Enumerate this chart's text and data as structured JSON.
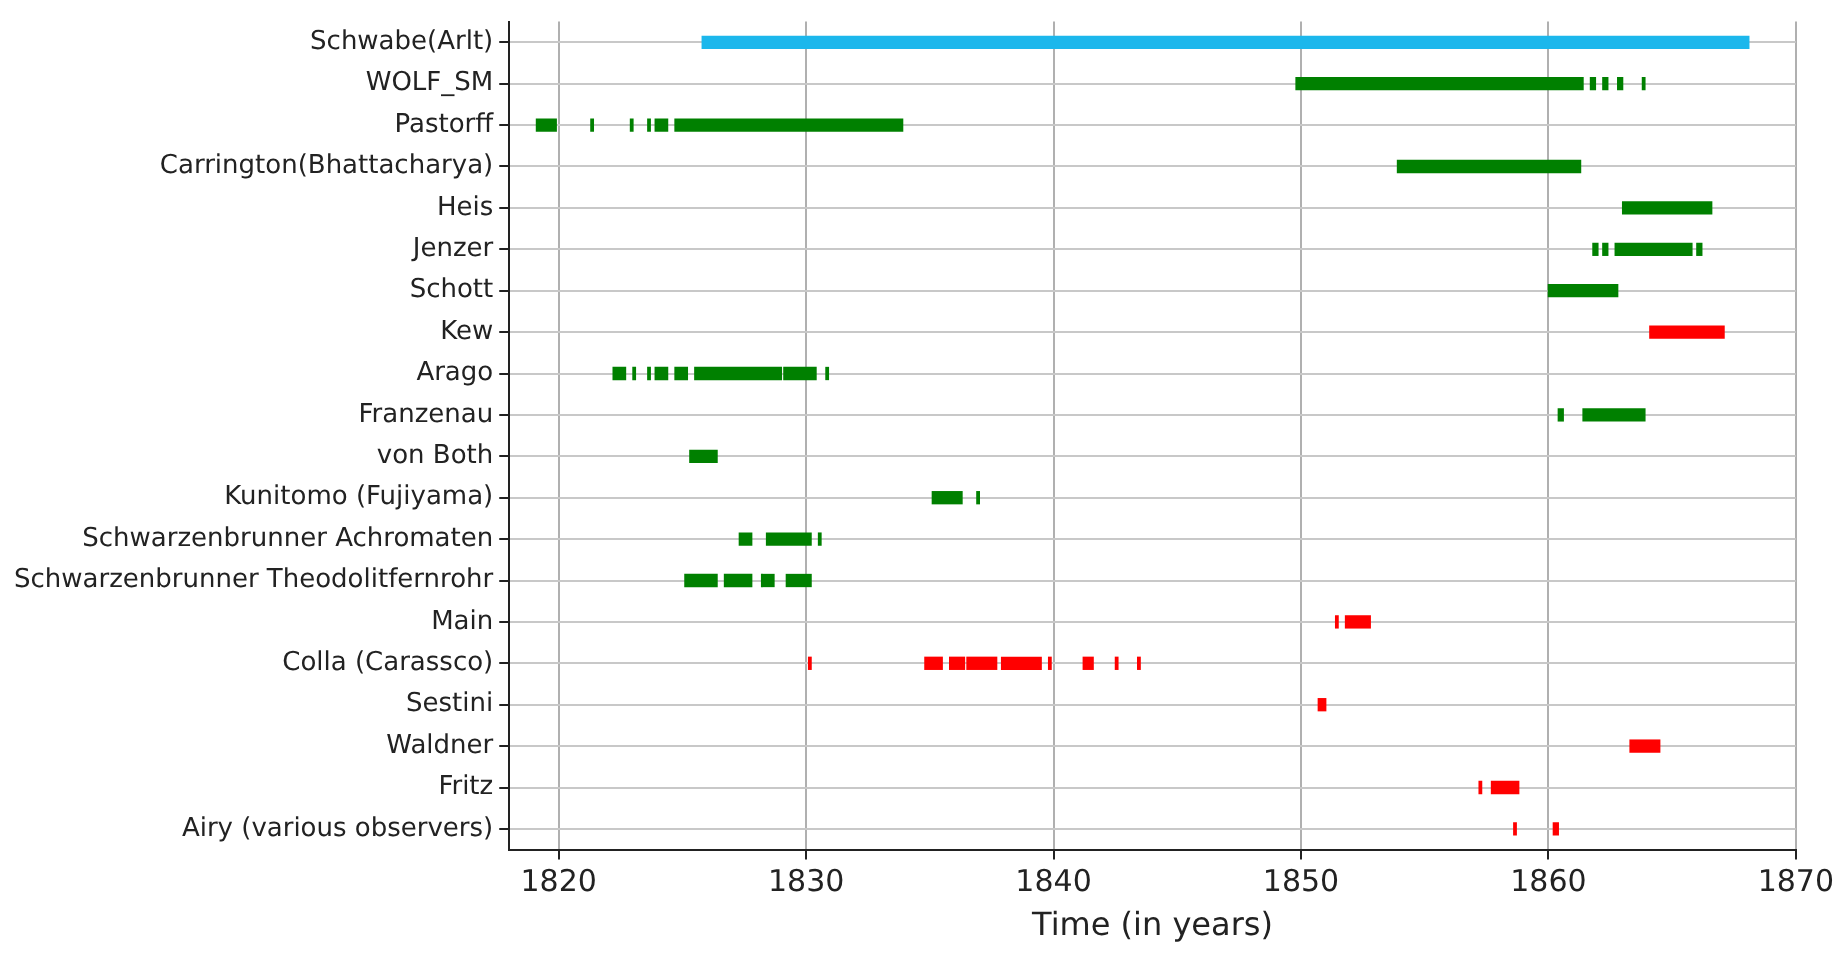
{
  "chart_data": {
    "type": "bar",
    "orientation": "horizontal",
    "xlabel": "Time (in years)",
    "categories": [
      "Schwabe(Arlt)",
      "WOLF_SM",
      "Pastorff",
      "Carrington(Bhattacharya)",
      "Heis",
      "Jenzer",
      "Schott",
      "Kew",
      "Arago",
      "Franzenau",
      "von Both",
      "Kunitomo (Fujiyama)",
      "Schwarzenbrunner Achromaten",
      "Schwarzenbrunner Theodolitfernrohr",
      "Main",
      "Colla (Carassco)",
      "Sestini",
      "Waldner",
      "Fritz",
      "Airy (various observers)"
    ],
    "series": [
      {
        "base": [
          1825.8,
          1849.8,
          1819.1,
          1853.9,
          1863.0,
          1861.8,
          1860.0,
          1864.1,
          1822.2,
          1860.4,
          1825.3,
          1835.1,
          1827.3,
          1825.1,
          1851.4,
          1830.1,
          1850.7,
          1863.3,
          1857.2,
          1858.6
        ],
        "values": [
          42.3,
          11.6,
          0.8,
          7.4,
          3.6,
          0.2,
          2.8,
          3.0,
          0.5,
          0.2,
          1.1,
          1.2,
          0.5,
          1.3,
          0.1,
          0.1,
          0.3,
          1.2,
          0.1,
          0.1
        ],
        "colors": [
          "#1cb7ec",
          "#008000",
          "#008000",
          "#008000",
          "#008000",
          "#008000",
          "#008000",
          "#ff0000",
          "#008000",
          "#008000",
          "#008000",
          "#008000",
          "#008000",
          "#008000",
          "#ff0000",
          "#ff0000",
          "#ff0000",
          "#ff0000",
          "#ff0000",
          "#ff0000"
        ]
      },
      {
        "base": [
          null,
          1861.7,
          1821.3,
          null,
          null,
          1862.2,
          null,
          null,
          1823.0,
          1861.4,
          null,
          1836.9,
          1828.4,
          1826.7,
          1851.8,
          1834.8,
          null,
          null,
          1857.7,
          1860.2
        ],
        "values": [
          null,
          0.2,
          0.1,
          null,
          null,
          0.2,
          null,
          null,
          0.1,
          2.5,
          null,
          0.1,
          1.8,
          1.1,
          1.0,
          0.7,
          null,
          null,
          1.1,
          0.2
        ],
        "colors": [
          null,
          "#008000",
          "#008000",
          null,
          null,
          "#008000",
          null,
          null,
          "#008000",
          "#008000",
          null,
          "#008000",
          "#008000",
          "#008000",
          "#ff0000",
          "#ff0000",
          null,
          null,
          "#ff0000",
          "#ff0000"
        ]
      },
      {
        "base": [
          null,
          1862.2,
          1822.9,
          null,
          null,
          1862.7,
          null,
          null,
          1823.6,
          null,
          null,
          null,
          1830.5,
          1828.2,
          null,
          1835.8,
          null,
          null,
          null,
          null
        ],
        "values": [
          null,
          0.2,
          0.1,
          null,
          null,
          3.1,
          null,
          null,
          0.1,
          null,
          null,
          null,
          0.1,
          0.5,
          null,
          0.6,
          null,
          null,
          null,
          null
        ],
        "colors": [
          null,
          "#008000",
          "#008000",
          null,
          null,
          "#008000",
          null,
          null,
          "#008000",
          null,
          null,
          null,
          "#008000",
          "#008000",
          null,
          "#ff0000",
          null,
          null,
          null,
          null
        ]
      },
      {
        "base": [
          null,
          1862.8,
          1823.6,
          null,
          null,
          1866.0,
          null,
          null,
          1823.9,
          null,
          null,
          null,
          null,
          1829.2,
          null,
          1836.5,
          null,
          null,
          null,
          null
        ],
        "values": [
          null,
          0.2,
          0.1,
          null,
          null,
          0.2,
          null,
          null,
          0.5,
          null,
          null,
          null,
          null,
          1.0,
          null,
          1.2,
          null,
          null,
          null,
          null
        ],
        "colors": [
          null,
          "#008000",
          "#008000",
          null,
          null,
          "#008000",
          null,
          null,
          "#008000",
          null,
          null,
          null,
          null,
          "#008000",
          null,
          "#ff0000",
          null,
          null,
          null,
          null
        ]
      },
      {
        "base": [
          null,
          1863.8,
          1823.9,
          null,
          null,
          null,
          null,
          null,
          1824.7,
          null,
          null,
          null,
          null,
          null,
          null,
          1837.9,
          null,
          null,
          null,
          null
        ],
        "values": [
          null,
          0.1,
          0.5,
          null,
          null,
          null,
          null,
          null,
          0.5,
          null,
          null,
          null,
          null,
          null,
          null,
          1.6,
          null,
          null,
          null,
          null
        ],
        "colors": [
          null,
          "#008000",
          "#008000",
          null,
          null,
          null,
          null,
          null,
          "#008000",
          null,
          null,
          null,
          null,
          null,
          null,
          "#ff0000",
          null,
          null,
          null,
          null
        ]
      },
      {
        "base": [
          null,
          null,
          1824.7,
          null,
          null,
          null,
          null,
          null,
          1825.5,
          null,
          null,
          null,
          null,
          null,
          null,
          1839.8,
          null,
          null,
          null,
          null
        ],
        "values": [
          null,
          null,
          9.2,
          null,
          null,
          null,
          null,
          null,
          3.5,
          null,
          null,
          null,
          null,
          null,
          null,
          0.1,
          null,
          null,
          null,
          null
        ],
        "colors": [
          null,
          null,
          "#008000",
          null,
          null,
          null,
          null,
          null,
          "#008000",
          null,
          null,
          null,
          null,
          null,
          null,
          "#ff0000",
          null,
          null,
          null,
          null
        ]
      },
      {
        "base": [
          null,
          null,
          null,
          null,
          null,
          null,
          null,
          null,
          1829.1,
          null,
          null,
          null,
          null,
          null,
          null,
          1841.2,
          null,
          null,
          null,
          null
        ],
        "values": [
          null,
          null,
          null,
          null,
          null,
          null,
          null,
          null,
          1.3,
          null,
          null,
          null,
          null,
          null,
          null,
          0.4,
          null,
          null,
          null,
          null
        ],
        "colors": [
          null,
          null,
          null,
          null,
          null,
          null,
          null,
          null,
          "#008000",
          null,
          null,
          null,
          null,
          null,
          null,
          "#ff0000",
          null,
          null,
          null,
          null
        ]
      },
      {
        "base": [
          null,
          null,
          null,
          null,
          null,
          null,
          null,
          null,
          1830.8,
          null,
          null,
          null,
          null,
          null,
          null,
          1842.5,
          null,
          null,
          null,
          null
        ],
        "values": [
          null,
          null,
          null,
          null,
          null,
          null,
          null,
          null,
          0.1,
          null,
          null,
          null,
          null,
          null,
          null,
          0.1,
          null,
          null,
          null,
          null
        ],
        "colors": [
          null,
          null,
          null,
          null,
          null,
          null,
          null,
          null,
          "#008000",
          null,
          null,
          null,
          null,
          null,
          null,
          "#ff0000",
          null,
          null,
          null,
          null
        ]
      },
      {
        "base": [
          null,
          null,
          null,
          null,
          null,
          null,
          null,
          null,
          null,
          null,
          null,
          null,
          null,
          null,
          null,
          1843.4,
          null,
          null,
          null,
          null
        ],
        "values": [
          null,
          null,
          null,
          null,
          null,
          null,
          null,
          null,
          null,
          null,
          null,
          null,
          null,
          null,
          null,
          0.1,
          null,
          null,
          null,
          null
        ],
        "color": "#ff0000"
      }
    ],
    "xlim": [
      1818,
      1870
    ],
    "xticks": [
      1820,
      1830,
      1840,
      1850,
      1860,
      1870
    ],
    "grid": true,
    "legend": false
  }
}
